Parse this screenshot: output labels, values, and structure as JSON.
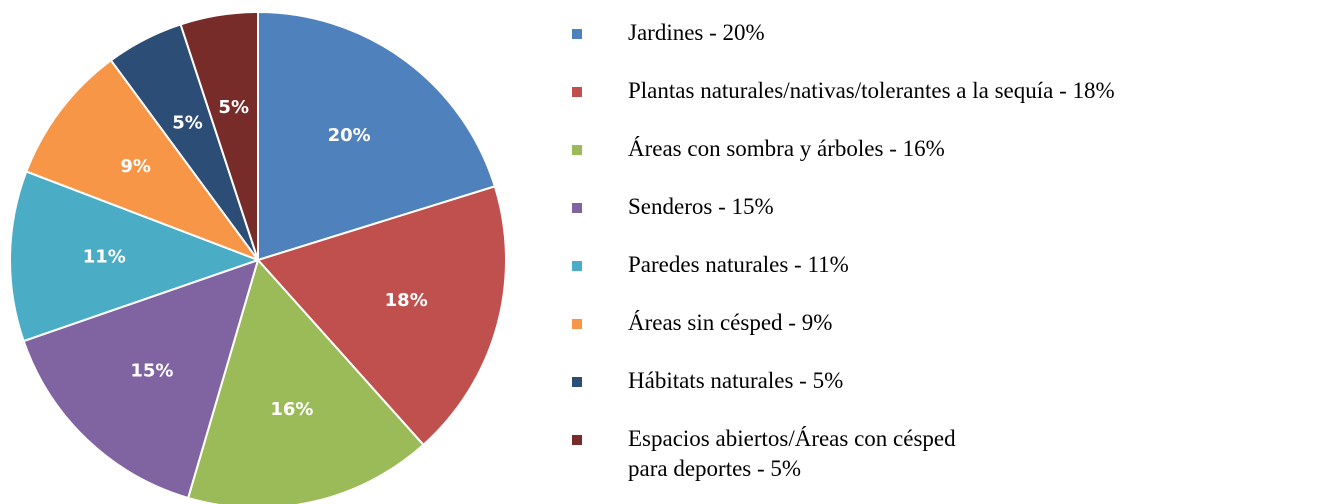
{
  "chart_data": {
    "type": "pie",
    "categories": [
      "Jardines - 20%",
      "Plantas naturales/nativas/tolerantes a la sequía - 18%",
      "Áreas con sombra y árboles - 16%",
      "Senderos - 15%",
      "Paredes naturales - 11%",
      "Áreas sin césped - 9%",
      "Hábitats naturales - 5%",
      "Espacios abiertos/Áreas con césped\npara deportes - 5%"
    ],
    "values": [
      20,
      18,
      16,
      15,
      11,
      9,
      5,
      5
    ],
    "value_labels": [
      "20%",
      "18%",
      "16%",
      "15%",
      "11%",
      "9%",
      "5%",
      "5%"
    ],
    "colors": [
      "#4f81bd",
      "#c0504d",
      "#9bbb59",
      "#8064a2",
      "#4bacc6",
      "#f79646",
      "#2c4d75",
      "#772c2a"
    ],
    "legend": "right"
  }
}
